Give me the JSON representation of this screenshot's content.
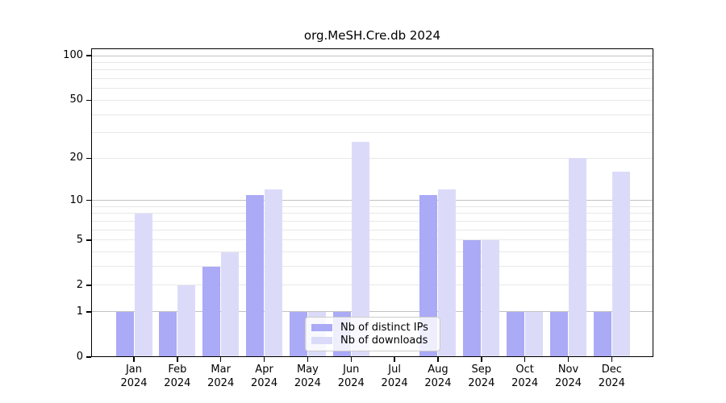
{
  "chart_data": {
    "type": "bar",
    "title": "org.MeSH.Cre.db 2024",
    "categories": [
      "Jan 2024",
      "Feb 2024",
      "Mar 2024",
      "Apr 2024",
      "May 2024",
      "Jun 2024",
      "Jul 2024",
      "Aug 2024",
      "Sep 2024",
      "Oct 2024",
      "Nov 2024",
      "Dec 2024"
    ],
    "series": [
      {
        "name": "Nb of distinct IPs",
        "color": "#aaaaf6",
        "values": [
          1,
          1,
          3,
          11,
          1,
          1,
          0,
          11,
          5,
          1,
          1,
          1
        ]
      },
      {
        "name": "Nb of downloads",
        "color": "#dbdbf9",
        "values": [
          8,
          2,
          4,
          12,
          1,
          26,
          0,
          12,
          5,
          1,
          20,
          16
        ]
      }
    ],
    "yscale": "log1p",
    "ylim": [
      0,
      112
    ],
    "yticks": [
      0,
      1,
      2,
      5,
      10,
      20,
      50,
      100
    ],
    "grid": {
      "major": [
        1,
        10,
        100
      ],
      "minor": [
        2,
        3,
        4,
        5,
        6,
        7,
        8,
        9,
        20,
        30,
        40,
        50,
        60,
        70,
        80,
        90
      ]
    },
    "legend": {
      "position": "lower-center"
    },
    "colors": {
      "major_grid": "#c2c2c2",
      "minor_grid": "#e8e8e8",
      "frame": "#000000"
    }
  }
}
